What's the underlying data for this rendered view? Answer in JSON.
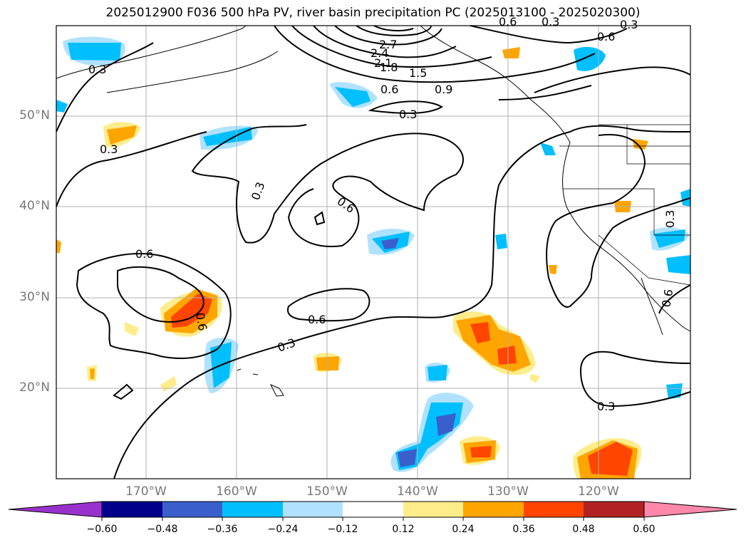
{
  "title": "2025012900 F036 500 hPa PV, river basin precipitation PC (2025013100 - 2025020300)",
  "lat_labels": [
    "50°N",
    "40°N",
    "30°N",
    "20°N"
  ],
  "lon_labels": [
    "170°W",
    "160°W",
    "150°W",
    "140°W",
    "130°W",
    "120°W"
  ],
  "contour_labels": [
    "2.7",
    "2.4",
    "2.1",
    "1.8",
    "1.5",
    "0.9",
    "0.6",
    "0.3",
    "0.6",
    "0.3",
    "0.3",
    "0.3",
    "0.6",
    "0.6",
    "0.6",
    "0.6",
    "0.3",
    "0.3",
    "0.3",
    "0.3",
    "0.6",
    "0.6",
    "0.3"
  ],
  "colorbar": {
    "ticks": [
      "−0.60",
      "−0.48",
      "−0.36",
      "−0.24",
      "−0.12",
      "0.12",
      "0.24",
      "0.36",
      "0.48",
      "0.60"
    ],
    "colors": [
      "#9932cc",
      "#00008b",
      "#3a5fcd",
      "#00bfff",
      "#b0e2ff",
      "#ffffff",
      "#ffec8b",
      "#ffa500",
      "#ff4500",
      "#b22222",
      "#ff88aa"
    ]
  }
}
